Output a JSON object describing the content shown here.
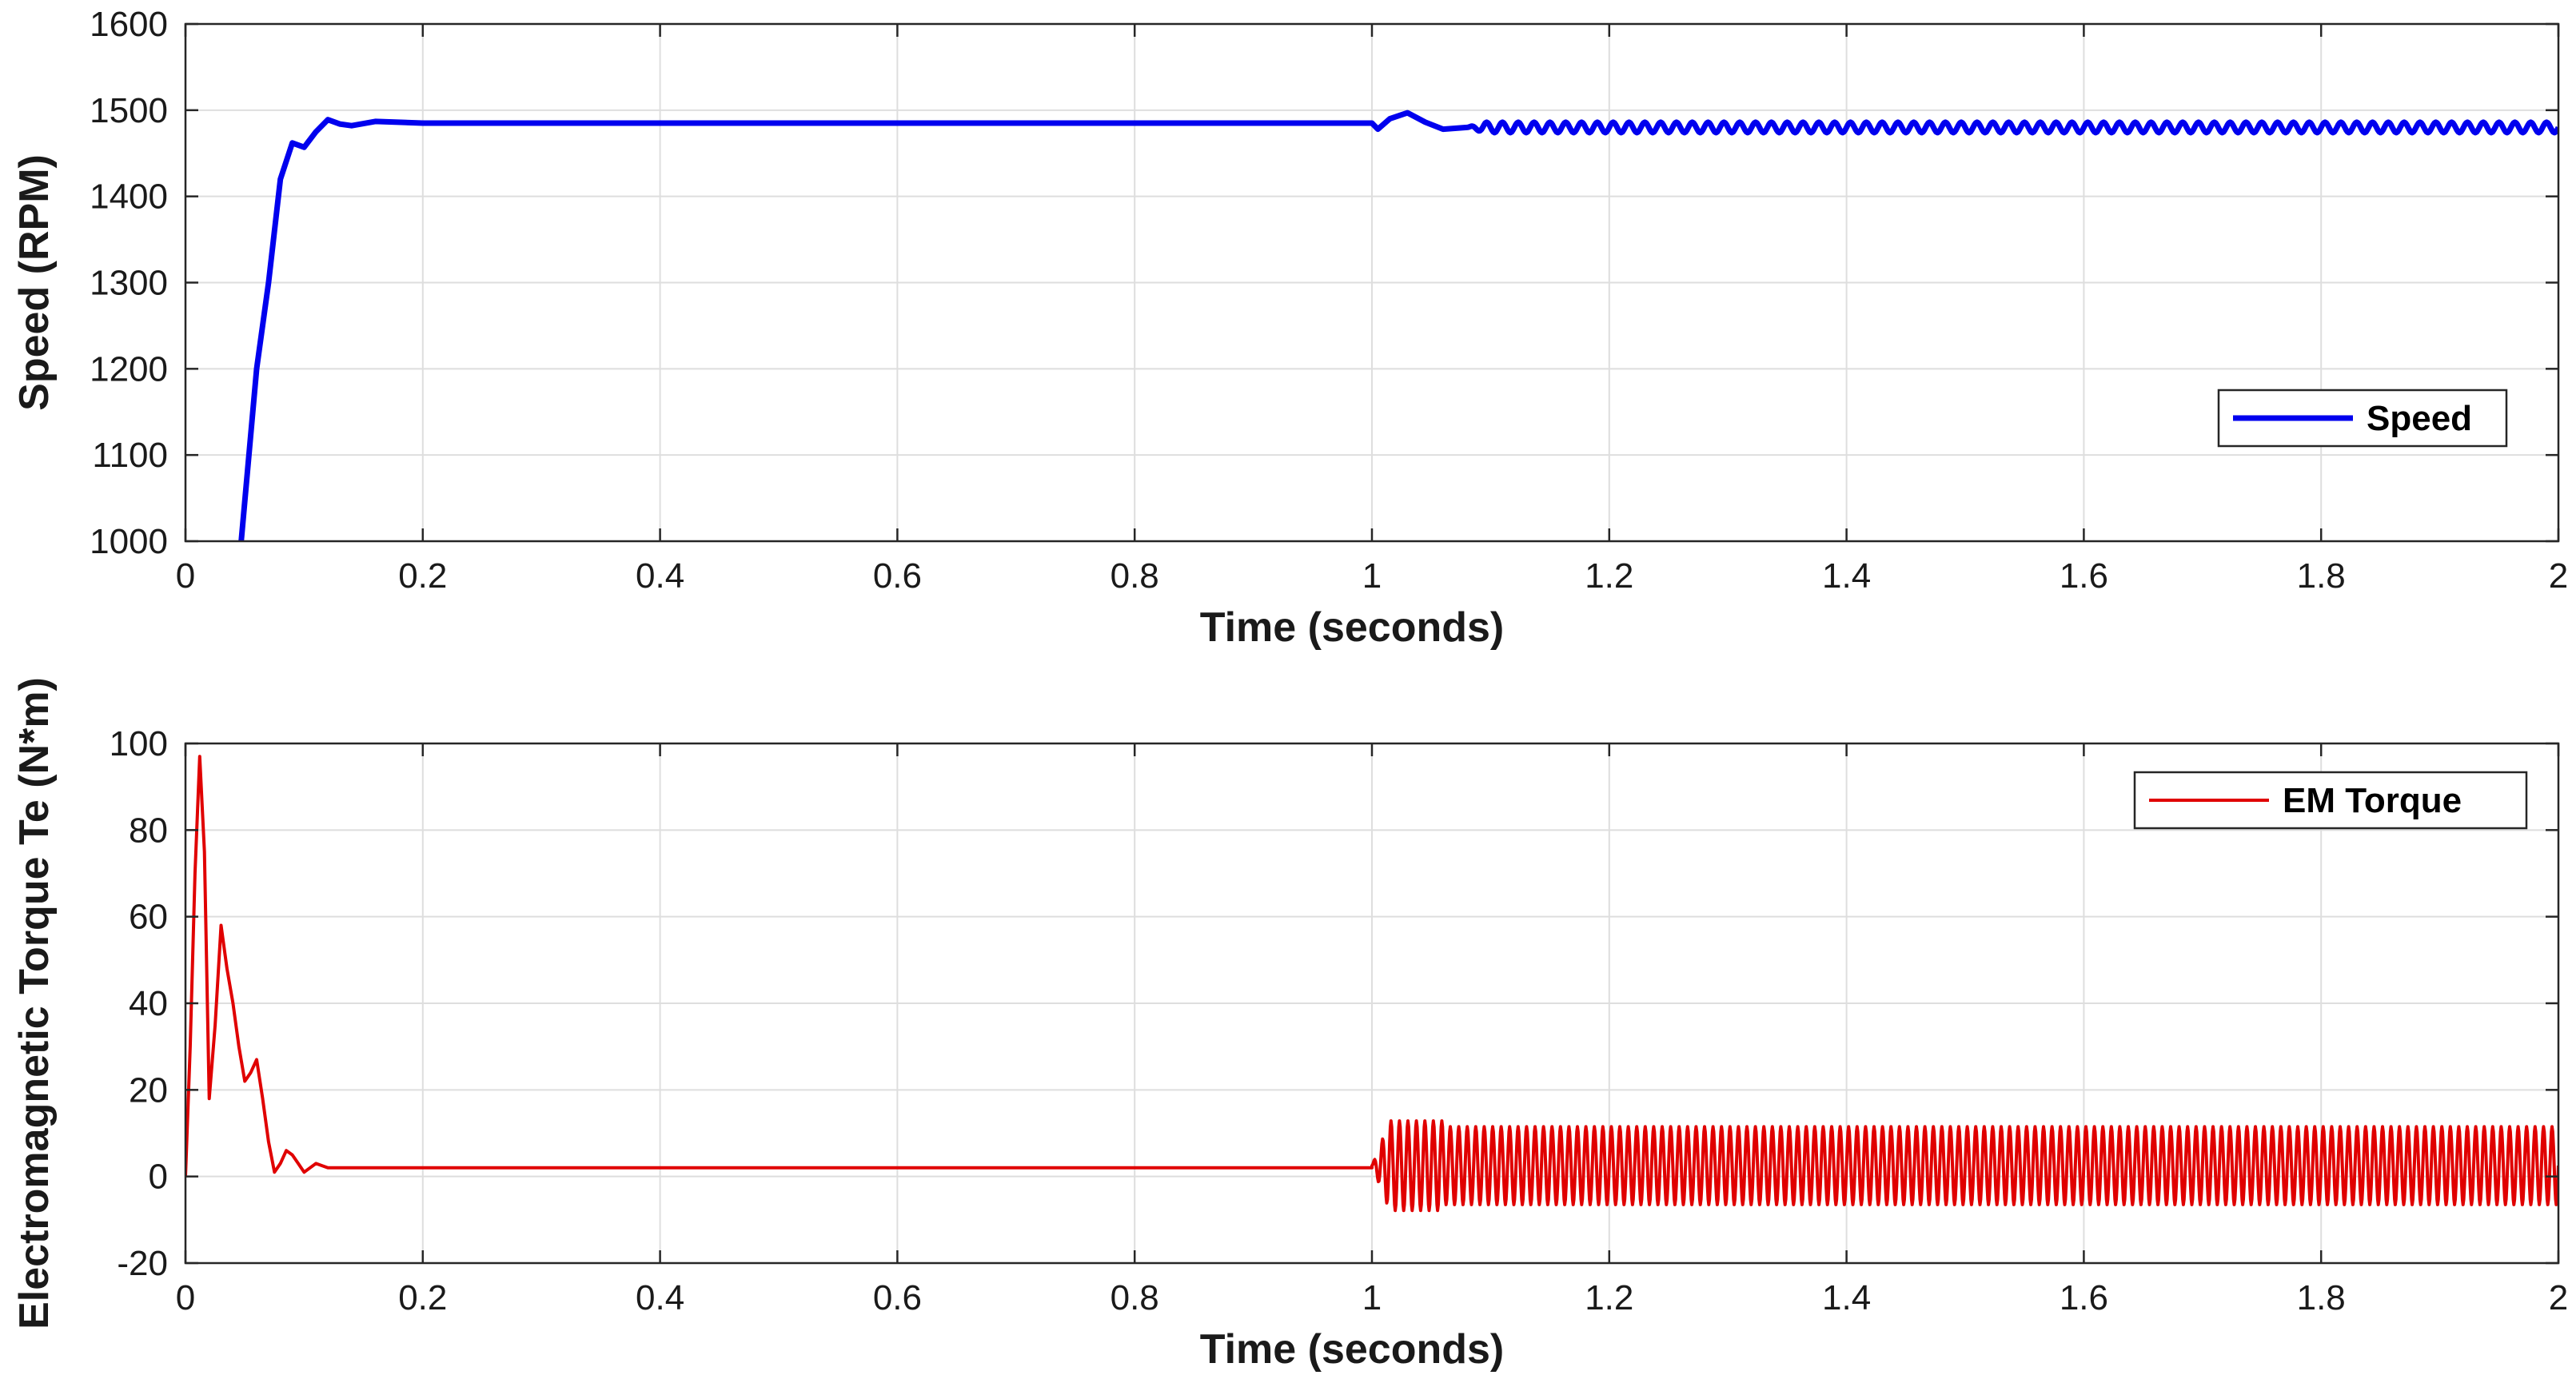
{
  "chart_data": [
    {
      "type": "line",
      "xlabel": "Time (seconds)",
      "ylabel": "Speed (RPM)",
      "xlim": [
        0,
        2
      ],
      "ylim": [
        1000,
        1600
      ],
      "xticks": [
        "0",
        "0.2",
        "0.4",
        "0.6",
        "0.8",
        "1",
        "1.2",
        "1.4",
        "1.6",
        "1.8",
        "2"
      ],
      "yticks": [
        "1000",
        "1100",
        "1200",
        "1300",
        "1400",
        "1500",
        "1600"
      ],
      "grid": true,
      "legend_position": "right",
      "series": [
        {
          "name": "Speed",
          "color": "#0000ee",
          "x": [
            0.047,
            0.06,
            0.07,
            0.08,
            0.09,
            0.1,
            0.11,
            0.12,
            0.13,
            0.14,
            0.16,
            0.2,
            0.3,
            0.5,
            0.8,
            1.0,
            1.005,
            1.015,
            1.03,
            1.045,
            1.06,
            1.1,
            1.5,
            2.0
          ],
          "y": [
            1000,
            1200,
            1300,
            1420,
            1462,
            1457,
            1475,
            1489,
            1484,
            1482,
            1487,
            1485,
            1485,
            1485,
            1485,
            1485,
            1478,
            1490,
            1497,
            1486,
            1478,
            1480,
            1480,
            1480
          ],
          "oscillation": {
            "start": 1.08,
            "end": 2.0,
            "amplitude": 6,
            "frequency_hz": 75
          }
        }
      ]
    },
    {
      "type": "line",
      "xlabel": "Time (seconds)",
      "ylabel": "Electromagnetic Torque Te (N*m)",
      "xlim": [
        0,
        2
      ],
      "ylim": [
        -20,
        100
      ],
      "xticks": [
        "0",
        "0.2",
        "0.4",
        "0.6",
        "0.8",
        "1",
        "1.2",
        "1.4",
        "1.6",
        "1.8",
        "2"
      ],
      "yticks": [
        "-20",
        "0",
        "20",
        "40",
        "60",
        "80",
        "100"
      ],
      "grid": true,
      "legend_position": "top-right",
      "series": [
        {
          "name": "EM Torque",
          "color": "#e00000",
          "x": [
            0,
            0.004,
            0.008,
            0.012,
            0.016,
            0.02,
            0.025,
            0.03,
            0.035,
            0.04,
            0.045,
            0.05,
            0.055,
            0.06,
            0.065,
            0.07,
            0.075,
            0.08,
            0.085,
            0.09,
            0.095,
            0.1,
            0.105,
            0.11,
            0.115,
            0.12,
            0.13,
            0.14,
            0.15,
            0.16,
            0.17,
            0.2,
            0.5,
            1.0
          ],
          "y": [
            0,
            30,
            70,
            97,
            75,
            18,
            35,
            58,
            48,
            40,
            30,
            22,
            24,
            27,
            18,
            8,
            1,
            3,
            6,
            5,
            3,
            1,
            2,
            3,
            2.5,
            2,
            2,
            2,
            2,
            2,
            2,
            2,
            2,
            2
          ],
          "oscillation": {
            "start": 1.0,
            "end": 2.0,
            "center": 2.5,
            "amplitude": 9,
            "frequency_hz": 140
          }
        }
      ]
    }
  ]
}
